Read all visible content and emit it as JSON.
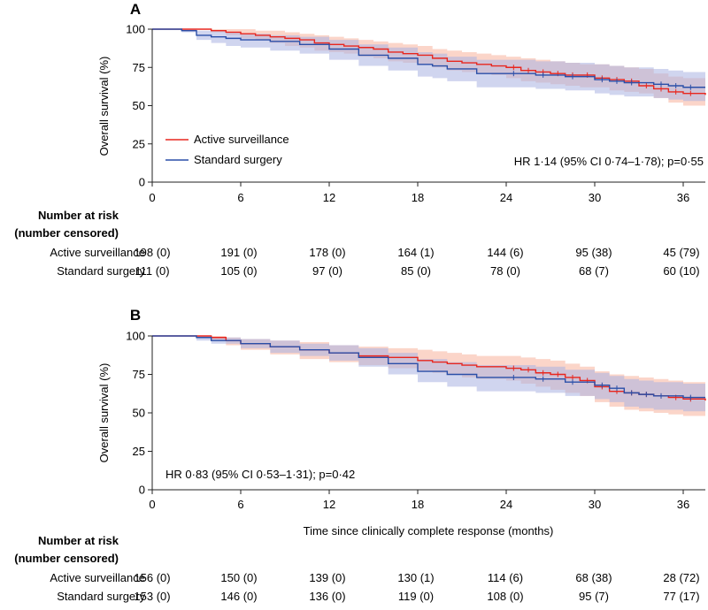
{
  "colors": {
    "active": "#e8261e",
    "active_band": "#f7b29c",
    "standard": "#2a4fa8",
    "standard_band": "#a9b3e2",
    "axis": "#222222"
  },
  "chart_data": [
    {
      "type": "line",
      "panel_label": "A",
      "xlabel": "",
      "ylabel": "Overall survival (%)",
      "xlim": [
        0,
        37.5
      ],
      "ylim": [
        0,
        100
      ],
      "x_ticks": [
        "0",
        "6",
        "12",
        "18",
        "24",
        "30",
        "36"
      ],
      "y_ticks": [
        "0",
        "25",
        "50",
        "75",
        "100"
      ],
      "annotation": "HR 1·14 (95% CI 0·74–1·78); p=0·55",
      "legend": {
        "placement": "lower-left",
        "items": [
          "Active surveillance",
          "Standard surgery"
        ]
      },
      "series": [
        {
          "name": "Active surveillance",
          "points": [
            [
              0,
              100
            ],
            [
              3.5,
              100
            ],
            [
              4,
              99
            ],
            [
              5,
              98
            ],
            [
              6,
              97
            ],
            [
              7,
              96
            ],
            [
              8,
              95
            ],
            [
              9,
              94
            ],
            [
              10,
              93
            ],
            [
              11,
              91
            ],
            [
              12,
              90
            ],
            [
              13,
              89
            ],
            [
              14,
              88
            ],
            [
              15,
              87
            ],
            [
              16,
              85
            ],
            [
              17,
              84
            ],
            [
              18,
              83
            ],
            [
              19,
              81
            ],
            [
              20,
              79
            ],
            [
              21,
              78
            ],
            [
              22,
              77
            ],
            [
              23,
              76
            ],
            [
              24,
              75
            ],
            [
              25,
              73
            ],
            [
              26,
              72
            ],
            [
              27,
              71
            ],
            [
              28,
              70
            ],
            [
              29,
              70
            ],
            [
              30,
              68
            ],
            [
              31,
              67
            ],
            [
              32,
              66
            ],
            [
              33,
              63
            ],
            [
              34,
              61
            ],
            [
              35,
              59
            ],
            [
              36,
              58
            ],
            [
              37.5,
              57
            ]
          ],
          "ci_upper": [
            100,
            100,
            100,
            100,
            100,
            99,
            99,
            98,
            97,
            96,
            95,
            94,
            93,
            92,
            91,
            90,
            89,
            87,
            86,
            85,
            84,
            83,
            82,
            81,
            80,
            79,
            78,
            77,
            77,
            76,
            75,
            74,
            71,
            69,
            68,
            67
          ],
          "ci_lower": [
            100,
            100,
            98,
            96,
            94,
            93,
            91,
            89,
            88,
            86,
            85,
            84,
            82,
            81,
            79,
            78,
            77,
            75,
            73,
            72,
            71,
            70,
            68,
            66,
            65,
            64,
            63,
            62,
            62,
            60,
            59,
            58,
            55,
            52,
            50,
            48
          ]
        },
        {
          "name": "Standard surgery",
          "points": [
            [
              0,
              100
            ],
            [
              2,
              99
            ],
            [
              3,
              96
            ],
            [
              4,
              95
            ],
            [
              5,
              94
            ],
            [
              6,
              93
            ],
            [
              8,
              92
            ],
            [
              10,
              90
            ],
            [
              12,
              87
            ],
            [
              14,
              83
            ],
            [
              16,
              81
            ],
            [
              18,
              77
            ],
            [
              19,
              76
            ],
            [
              20,
              74
            ],
            [
              22,
              71
            ],
            [
              24,
              71
            ],
            [
              26,
              70
            ],
            [
              28,
              69
            ],
            [
              30,
              67
            ],
            [
              31,
              66
            ],
            [
              32,
              65
            ],
            [
              34,
              64
            ],
            [
              35,
              63
            ],
            [
              36,
              62
            ],
            [
              37.5,
              62
            ]
          ],
          "ci_upper": [
            100,
            100,
            99,
            99,
            98,
            97,
            96,
            95,
            93,
            90,
            88,
            85,
            84,
            82,
            80,
            80,
            79,
            78,
            77,
            76,
            75,
            74,
            73,
            72,
            72
          ],
          "ci_lower": [
            100,
            98,
            93,
            91,
            89,
            88,
            86,
            84,
            80,
            76,
            73,
            69,
            68,
            66,
            62,
            62,
            61,
            60,
            58,
            57,
            56,
            55,
            54,
            53,
            53
          ]
        }
      ],
      "risk_table": {
        "header": [
          "Number at risk",
          "(number censored)"
        ],
        "rows": [
          {
            "label": "Active surveillance",
            "values": [
              "198 (0)",
              "191 (0)",
              "178 (0)",
              "164 (1)",
              "144 (6)",
              "95 (38)",
              "45 (79)"
            ]
          },
          {
            "label": "Standard surgery",
            "values": [
              "111 (0)",
              "105 (0)",
              "97 (0)",
              "85 (0)",
              "78 (0)",
              "68 (7)",
              "60 (10)"
            ]
          }
        ]
      }
    },
    {
      "type": "line",
      "panel_label": "B",
      "xlabel": "Time since clinically complete response (months)",
      "ylabel": "Overall survival (%)",
      "xlim": [
        0,
        37.5
      ],
      "ylim": [
        0,
        100
      ],
      "x_ticks": [
        "0",
        "6",
        "12",
        "18",
        "24",
        "30",
        "36"
      ],
      "y_ticks": [
        "0",
        "25",
        "50",
        "75",
        "100"
      ],
      "annotation": "HR 0·83 (95% CI 0·53–1·31); p=0·42",
      "series": [
        {
          "name": "Active surveillance",
          "points": [
            [
              0,
              100
            ],
            [
              3,
              100
            ],
            [
              4,
              99
            ],
            [
              5,
              97
            ],
            [
              6,
              95
            ],
            [
              8,
              93
            ],
            [
              10,
              91
            ],
            [
              12,
              89
            ],
            [
              14,
              87
            ],
            [
              16,
              86
            ],
            [
              18,
              84
            ],
            [
              19,
              83
            ],
            [
              20,
              82
            ],
            [
              21,
              81
            ],
            [
              22,
              80
            ],
            [
              24,
              79
            ],
            [
              25,
              78
            ],
            [
              26,
              76
            ],
            [
              27,
              75
            ],
            [
              28,
              73
            ],
            [
              29,
              71
            ],
            [
              30,
              67
            ],
            [
              31,
              64
            ],
            [
              32,
              63
            ],
            [
              33,
              62
            ],
            [
              34,
              61
            ],
            [
              35,
              60
            ],
            [
              36,
              59
            ],
            [
              37.5,
              58
            ]
          ],
          "ci_upper": [
            100,
            100,
            100,
            99,
            98,
            97,
            96,
            94,
            93,
            92,
            91,
            90,
            89,
            88,
            87,
            87,
            86,
            85,
            84,
            82,
            80,
            77,
            75,
            74,
            73,
            72,
            71,
            70,
            70
          ],
          "ci_lower": [
            100,
            100,
            97,
            94,
            91,
            88,
            85,
            83,
            81,
            79,
            77,
            76,
            75,
            73,
            72,
            71,
            69,
            67,
            65,
            63,
            61,
            57,
            54,
            52,
            51,
            50,
            49,
            48,
            47
          ]
        },
        {
          "name": "Standard surgery",
          "points": [
            [
              0,
              100
            ],
            [
              2,
              100
            ],
            [
              3,
              99
            ],
            [
              4,
              97
            ],
            [
              6,
              95
            ],
            [
              8,
              93
            ],
            [
              10,
              91
            ],
            [
              12,
              89
            ],
            [
              14,
              86
            ],
            [
              16,
              82
            ],
            [
              18,
              77
            ],
            [
              20,
              75
            ],
            [
              22,
              73
            ],
            [
              24,
              73
            ],
            [
              26,
              72
            ],
            [
              28,
              70
            ],
            [
              30,
              68
            ],
            [
              31,
              66
            ],
            [
              32,
              63
            ],
            [
              33,
              62
            ],
            [
              34,
              61
            ],
            [
              36,
              60
            ],
            [
              37.5,
              60
            ]
          ],
          "ci_upper": [
            100,
            100,
            100,
            99,
            98,
            97,
            95,
            94,
            92,
            89,
            85,
            83,
            81,
            81,
            80,
            78,
            76,
            74,
            72,
            71,
            70,
            69,
            69
          ],
          "ci_lower": [
            100,
            100,
            97,
            95,
            92,
            89,
            87,
            84,
            80,
            75,
            70,
            67,
            64,
            64,
            63,
            61,
            59,
            57,
            54,
            53,
            52,
            51,
            51
          ]
        }
      ],
      "risk_table": {
        "header": [
          "Number at risk",
          "(number censored)"
        ],
        "rows": [
          {
            "label": "Active surveillance",
            "values": [
              "156 (0)",
              "150 (0)",
              "139 (0)",
              "130 (1)",
              "114 (6)",
              "68 (38)",
              "28 (72)"
            ]
          },
          {
            "label": "Standard surgery",
            "values": [
              "153 (0)",
              "146 (0)",
              "136 (0)",
              "119 (0)",
              "108 (0)",
              "95 (7)",
              "77 (17)"
            ]
          }
        ]
      }
    }
  ]
}
